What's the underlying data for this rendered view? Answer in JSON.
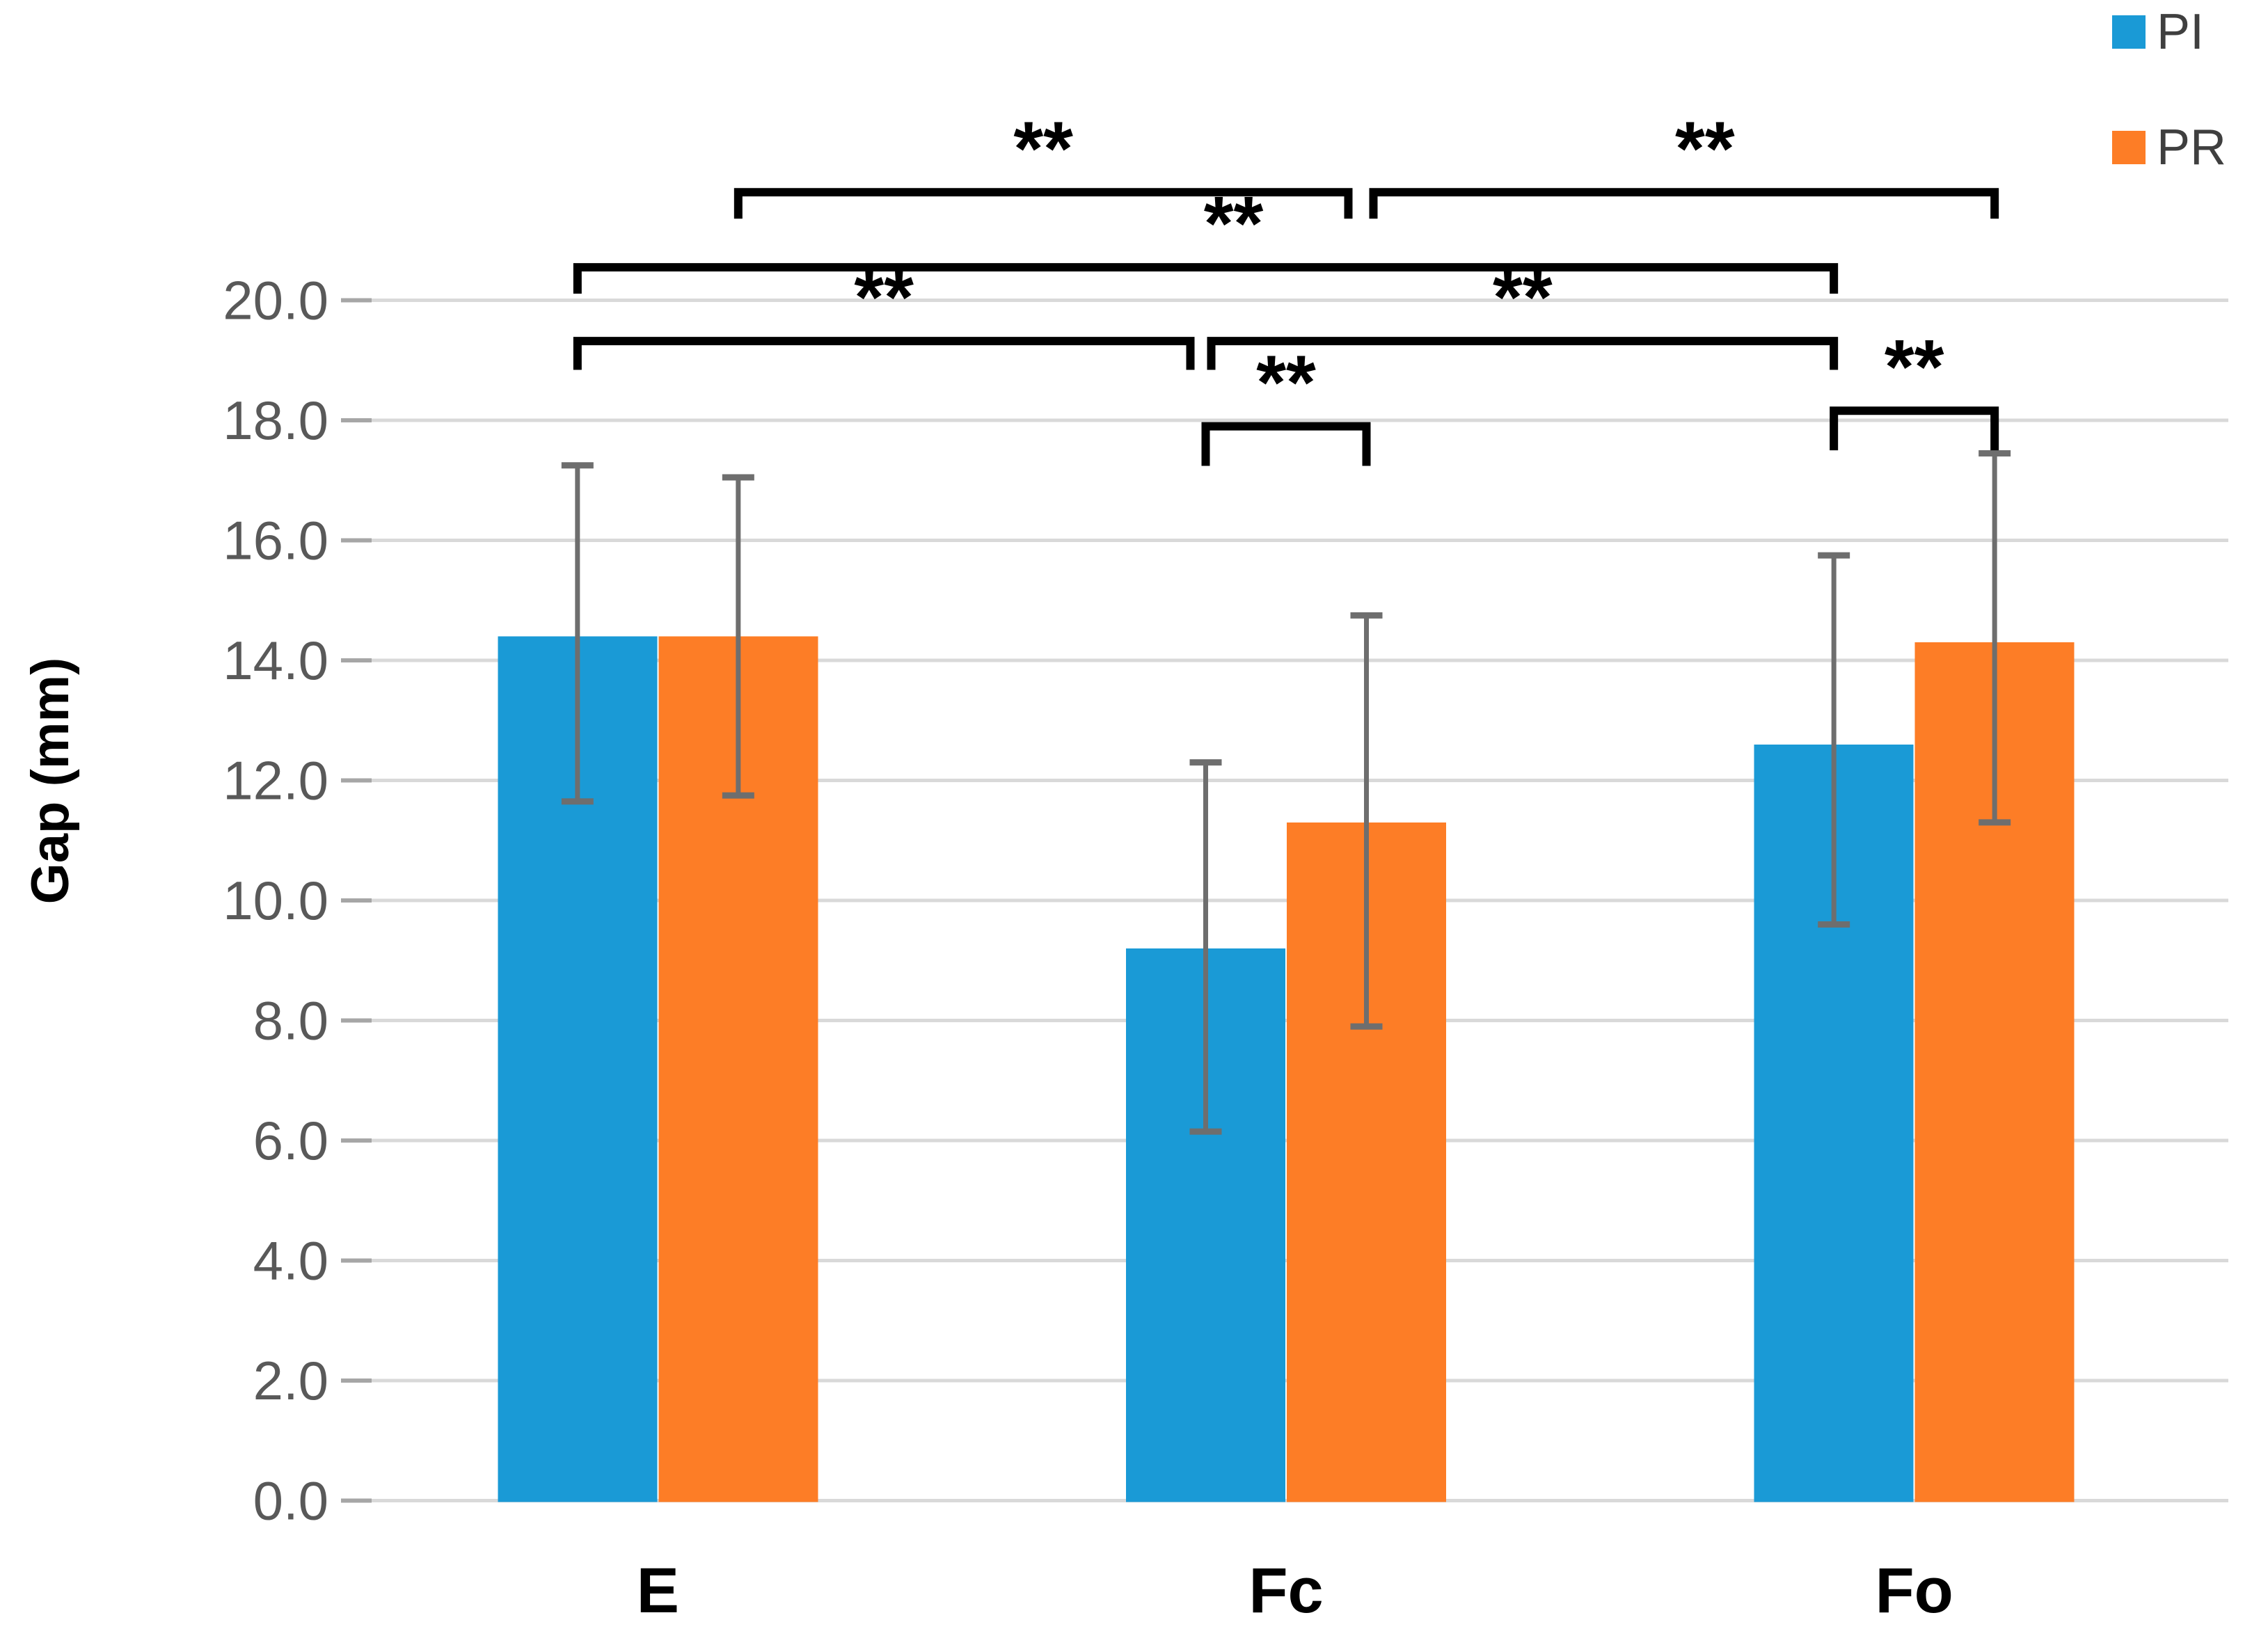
{
  "chart_data": {
    "type": "bar",
    "title": "",
    "xlabel": "",
    "ylabel": "Gap (mm)",
    "categories": [
      "E",
      "Fc",
      "Fo"
    ],
    "series": [
      {
        "name": "PI",
        "color": "#1a9ad6",
        "values": [
          14.4,
          9.2,
          12.6
        ],
        "err_high": [
          17.25,
          12.3,
          15.75
        ],
        "err_low": [
          11.65,
          6.15,
          9.6
        ]
      },
      {
        "name": "PR",
        "color": "#fd7d26",
        "values": [
          14.4,
          11.3,
          14.3
        ],
        "err_high": [
          17.05,
          14.75,
          17.45
        ],
        "err_low": [
          11.75,
          7.9,
          11.3
        ]
      }
    ],
    "ylim": [
      0,
      20
    ],
    "ytick_step": 2,
    "ytick_labels": [
      "0.0",
      "2.0",
      "4.0",
      "6.0",
      "8.0",
      "10.0",
      "12.0",
      "14.0",
      "16.0",
      "18.0",
      "20.0"
    ],
    "grid": true,
    "legend_position": "top-right",
    "error_bar_color": "#6e6e6e",
    "gridline_color": "#d9d9d9",
    "axis_tick_color": "#a6a6a6",
    "significance_brackets": [
      {
        "between": [
          {
            "cat": 0,
            "series": 1
          },
          {
            "cat": 1,
            "series": 1,
            "dx": -26
          }
        ],
        "y": 21.8,
        "tick": 0.44,
        "label": "**"
      },
      {
        "between": [
          {
            "cat": 1,
            "series": 1,
            "dx": 10
          },
          {
            "cat": 2,
            "series": 1
          }
        ],
        "y": 21.8,
        "tick": 0.44,
        "label": "**",
        "label_dx": 30
      },
      {
        "between": [
          {
            "cat": 0,
            "series": 0
          },
          {
            "cat": 2,
            "series": 0
          }
        ],
        "y": 20.55,
        "tick": 0.44,
        "label": "**",
        "label_dx": 40
      },
      {
        "between": [
          {
            "cat": 0,
            "series": 0
          },
          {
            "cat": 1,
            "series": 0,
            "dx": -22
          }
        ],
        "y": 19.32,
        "tick": 0.48,
        "label": "**"
      },
      {
        "between": [
          {
            "cat": 1,
            "series": 0,
            "dx": 8
          },
          {
            "cat": 2,
            "series": 0
          }
        ],
        "y": 19.32,
        "tick": 0.48,
        "label": "**"
      },
      {
        "between": [
          {
            "cat": 1,
            "series": 0
          },
          {
            "cat": 1,
            "series": 1
          }
        ],
        "y": 17.9,
        "tick": 0.66,
        "label": "**"
      },
      {
        "between": [
          {
            "cat": 2,
            "series": 0
          },
          {
            "cat": 2,
            "series": 1
          }
        ],
        "y": 18.16,
        "tick": 0.66,
        "label": "**"
      }
    ]
  }
}
